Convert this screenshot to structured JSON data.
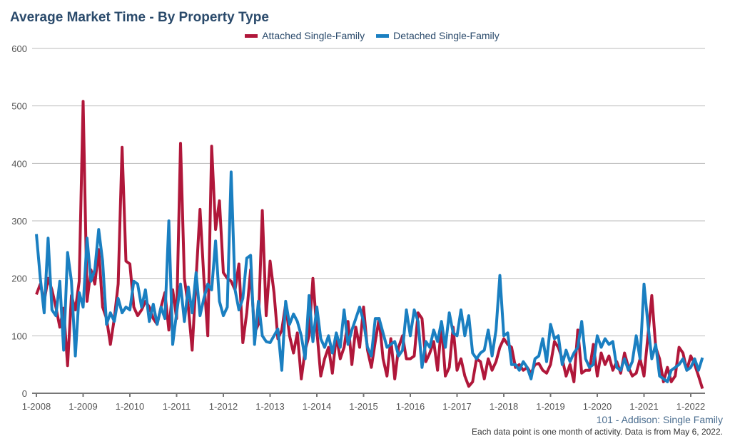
{
  "chart_data": {
    "type": "line",
    "title": "Average Market Time - By Property Type",
    "ylim": [
      0,
      600
    ],
    "yticks": [
      0,
      100,
      200,
      300,
      400,
      500,
      600
    ],
    "xticks": [
      "1-2008",
      "1-2009",
      "1-2010",
      "1-2011",
      "1-2012",
      "1-2013",
      "1-2014",
      "1-2015",
      "1-2016",
      "1-2017",
      "1-2018",
      "1-2019",
      "1-2020",
      "1-2021",
      "1-2022"
    ],
    "x_start": "1-2008",
    "x_end": "4-2022",
    "grid": true,
    "legend_position": "top-center",
    "series": [
      {
        "name": "Attached Single-Family",
        "color": "#b0173a",
        "values": [
          172,
          190,
          160,
          200,
          180,
          150,
          115,
          148,
          48,
          170,
          145,
          195,
          508,
          160,
          215,
          190,
          250,
          150,
          130,
          85,
          130,
          190,
          428,
          230,
          225,
          150,
          135,
          145,
          160,
          150,
          130,
          120,
          150,
          175,
          110,
          180,
          130,
          435,
          200,
          150,
          75,
          200,
          320,
          200,
          100,
          430,
          285,
          335,
          210,
          200,
          195,
          180,
          225,
          88,
          140,
          215,
          105,
          120,
          318,
          135,
          230,
          175,
          95,
          110,
          155,
          100,
          70,
          105,
          25,
          75,
          100,
          200,
          110,
          30,
          60,
          80,
          35,
          100,
          60,
          80,
          125,
          50,
          115,
          80,
          150,
          75,
          45,
          90,
          130,
          60,
          30,
          95,
          25,
          80,
          100,
          60,
          60,
          65,
          140,
          130,
          55,
          70,
          90,
          40,
          120,
          30,
          45,
          115,
          40,
          60,
          30,
          12,
          20,
          60,
          55,
          25,
          60,
          40,
          55,
          80,
          95,
          85,
          80,
          45,
          50,
          40,
          45,
          35,
          50,
          52,
          40,
          35,
          50,
          90,
          80,
          60,
          30,
          50,
          20,
          110,
          35,
          40,
          40,
          85,
          30,
          70,
          50,
          65,
          40,
          55,
          35,
          70,
          45,
          30,
          35,
          60,
          30,
          100,
          170,
          80,
          60,
          20,
          45,
          20,
          30,
          80,
          70,
          40,
          65,
          50,
          30,
          8
        ]
      },
      {
        "name": "Detached Single-Family",
        "color": "#1a7fc1",
        "values": [
          277,
          200,
          140,
          270,
          145,
          135,
          195,
          75,
          245,
          195,
          65,
          175,
          150,
          270,
          195,
          215,
          285,
          230,
          120,
          140,
          125,
          165,
          140,
          150,
          145,
          195,
          190,
          150,
          180,
          125,
          155,
          120,
          150,
          130,
          300,
          85,
          140,
          190,
          125,
          185,
          140,
          210,
          135,
          165,
          190,
          180,
          265,
          160,
          135,
          150,
          385,
          180,
          145,
          165,
          235,
          240,
          85,
          160,
          100,
          90,
          88,
          100,
          112,
          40,
          160,
          120,
          138,
          125,
          100,
          60,
          170,
          90,
          150,
          95,
          80,
          100,
          70,
          105,
          80,
          145,
          85,
          110,
          130,
          150,
          125,
          80,
          65,
          130,
          130,
          105,
          80,
          85,
          90,
          65,
          75,
          145,
          100,
          145,
          125,
          45,
          90,
          80,
          110,
          90,
          125,
          80,
          140,
          105,
          100,
          145,
          100,
          135,
          70,
          60,
          70,
          75,
          110,
          65,
          110,
          205,
          100,
          105,
          50,
          50,
          40,
          55,
          45,
          25,
          60,
          65,
          95,
          55,
          120,
          95,
          100,
          50,
          75,
          55,
          70,
          80,
          125,
          60,
          45,
          50,
          100,
          80,
          95,
          85,
          90,
          45,
          40,
          60,
          40,
          55,
          100,
          60,
          190,
          120,
          60,
          85,
          30,
          25,
          20,
          40,
          45,
          50,
          60,
          40,
          45,
          60,
          40,
          62
        ]
      }
    ]
  },
  "footer": {
    "source": "101 - Addison: Single Family",
    "note": "Each data point is one month of activity. Data is from May 6, 2022."
  }
}
